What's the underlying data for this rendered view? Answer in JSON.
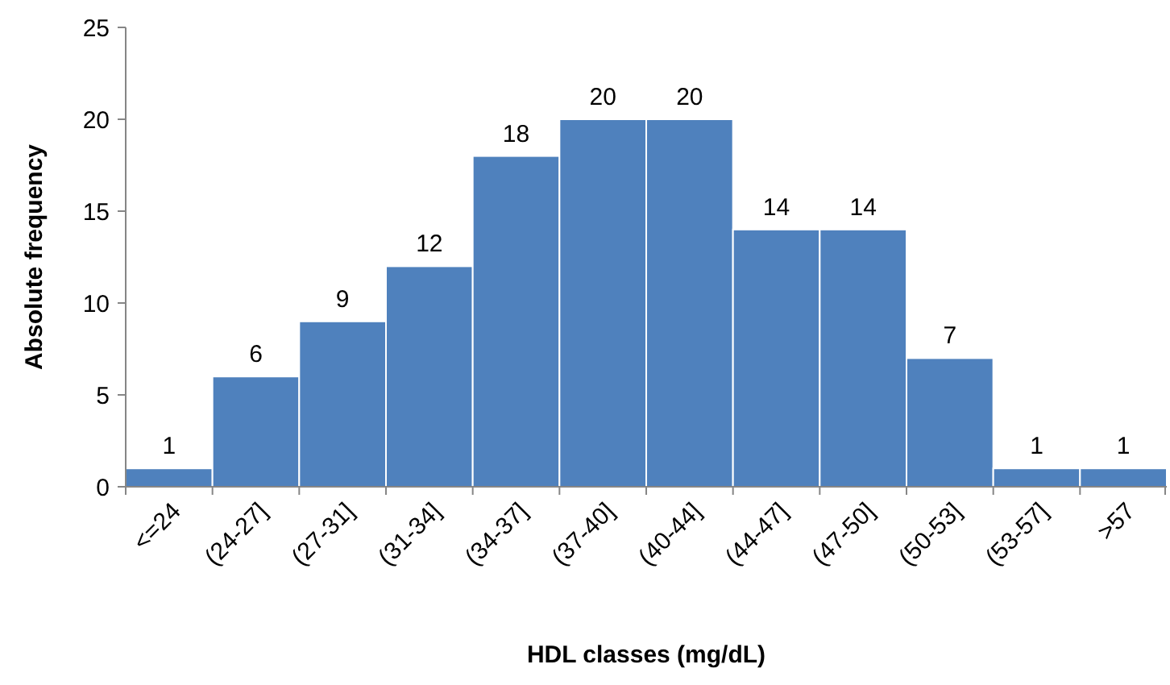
{
  "chart_data": {
    "type": "bar",
    "xlabel": "HDL classes  (mg/dL)",
    "ylabel": "Absolute frequency",
    "categories": [
      "<=24",
      "(24-27]",
      "(27-31]",
      "(31-34]",
      "(34-37]",
      "(37-40]",
      "(40-44]",
      "(44-47]",
      "(47-50]",
      "(50-53]",
      "(53-57]",
      ">57"
    ],
    "values": [
      1,
      6,
      9,
      12,
      18,
      20,
      20,
      14,
      14,
      7,
      1,
      1
    ],
    "color": "#4f81bd",
    "ylim": [
      0,
      25
    ],
    "yticks": [
      0,
      5,
      10,
      15,
      20,
      25
    ],
    "grid": false,
    "data_labels": true
  }
}
